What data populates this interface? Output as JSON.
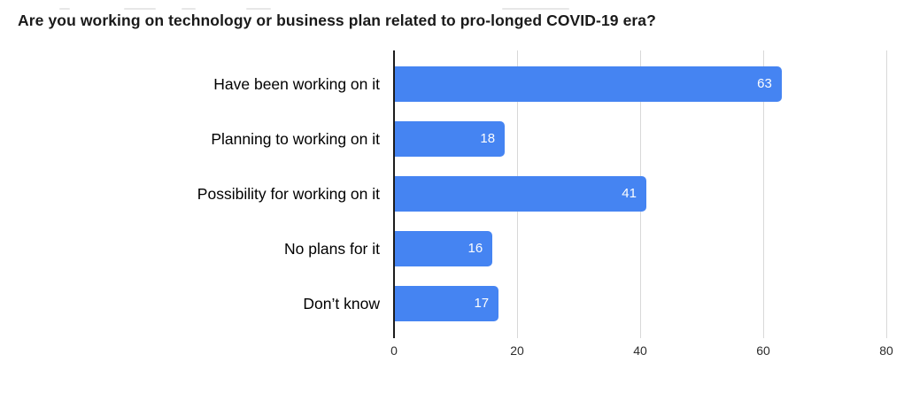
{
  "title": "Are you working on technology or business plan related to pro-longed COVID-19 era?",
  "colors": {
    "bar": "#4584f2",
    "gridline": "#d8d8d8",
    "axis_line": "#1c1c1c",
    "value_label": "#fcfdfe",
    "title_text": "#1a1a1a",
    "category_label": "#000000",
    "tick_label": "#2d2d2d",
    "background": "#ffffff"
  },
  "chart_data": {
    "type": "bar",
    "orientation": "horizontal",
    "title": "Are you working on technology or business plan related to pro-longed COVID-19 era?",
    "categories": [
      "Have been working on it",
      "Planning to working on it",
      "Possibility for working on it",
      "No plans for it",
      "Don’t know"
    ],
    "values": [
      63,
      18,
      41,
      16,
      17
    ],
    "xlabel": "",
    "ylabel": "",
    "xlim": [
      0,
      80
    ],
    "xticks": [
      0,
      20,
      40,
      60,
      80
    ],
    "grid": true,
    "legend": "none",
    "value_labels_position": "inside-end"
  }
}
